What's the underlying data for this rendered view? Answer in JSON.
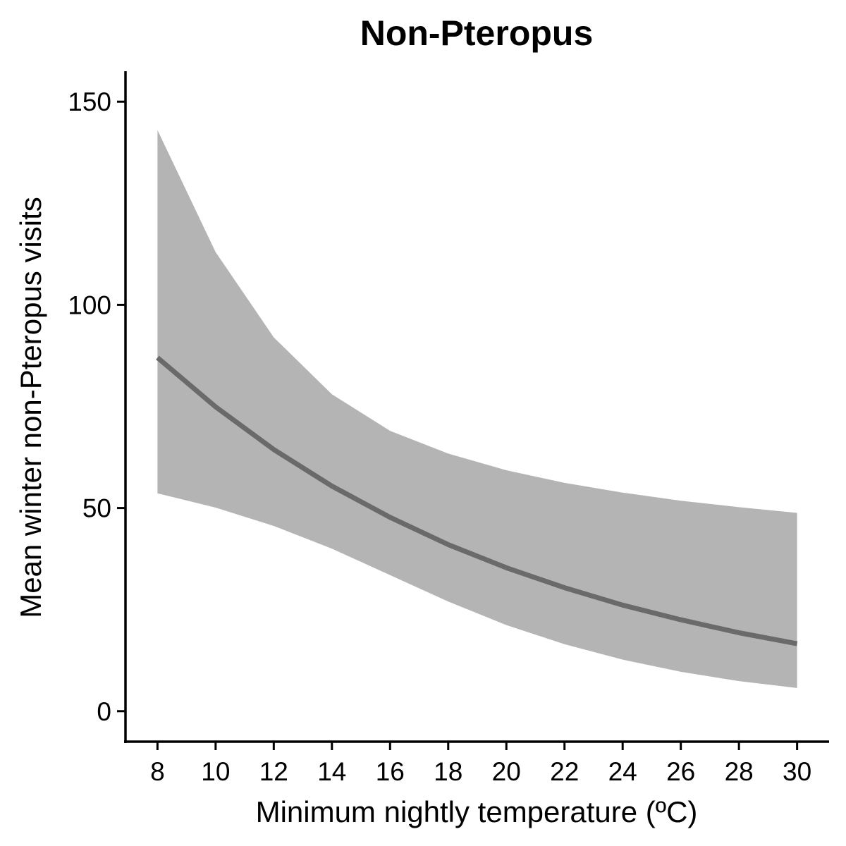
{
  "chart_data": {
    "type": "line",
    "title": "Non-Pteropus",
    "xlabel": "Minimum nightly temperature (ºC)",
    "ylabel": "Mean winter non-Pteropus visits",
    "xlim": [
      6.9,
      31.1
    ],
    "ylim": [
      -7.5,
      157.5
    ],
    "x_ticks": [
      8,
      10,
      12,
      14,
      16,
      18,
      20,
      22,
      24,
      26,
      28,
      30
    ],
    "y_ticks": [
      0,
      50,
      100,
      150
    ],
    "grid": false,
    "legend": "none",
    "colors": {
      "fit_line": "#6a6a6a",
      "confidence_band": "#b4b4b4",
      "axes": "#000000"
    },
    "series": [
      {
        "x": [
          8,
          10,
          12,
          14,
          16,
          18,
          20,
          22,
          24,
          26,
          28,
          30
        ],
        "y": [
          87.0,
          74.9,
          64.4,
          55.4,
          47.7,
          41.0,
          35.3,
          30.4,
          26.1,
          22.5,
          19.3,
          16.6
        ],
        "lower": [
          53.6,
          50.1,
          45.6,
          40.0,
          33.5,
          27.0,
          21.2,
          16.5,
          12.7,
          9.7,
          7.4,
          5.7
        ],
        "upper": [
          143.0,
          113.0,
          92.0,
          78.0,
          69.0,
          63.4,
          59.3,
          56.2,
          53.8,
          51.8,
          50.2,
          48.8
        ]
      }
    ]
  }
}
